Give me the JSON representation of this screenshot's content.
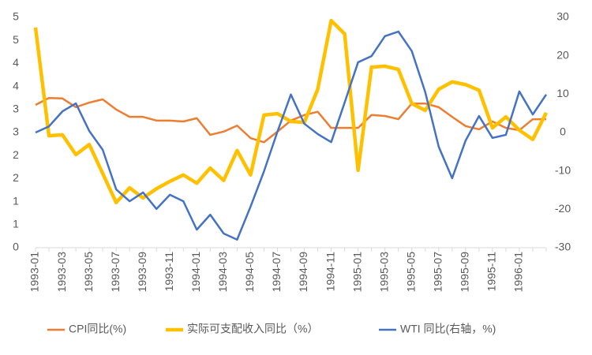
{
  "chart_data": {
    "type": "line",
    "categories": [
      "1993-01",
      null,
      "1993-03",
      null,
      "1993-05",
      null,
      "1993-07",
      null,
      "1993-09",
      null,
      "1993-11",
      null,
      "1994-01",
      null,
      "1994-03",
      null,
      "1994-05",
      null,
      "1994-07",
      null,
      "1994-09",
      null,
      "1994-11",
      null,
      "1995-01",
      null,
      "1995-03",
      null,
      "1995-05",
      null,
      "1995-07",
      null,
      "1995-09",
      null,
      "1995-11",
      null,
      "1996-01",
      null,
      null
    ],
    "series": [
      {
        "name": "CPI同比(%)",
        "color": "#ED7D31",
        "width": 2.5,
        "values": [
          3.1,
          3.25,
          3.24,
          3.05,
          3.15,
          3.22,
          3.0,
          2.84,
          2.84,
          2.76,
          2.76,
          2.74,
          2.81,
          2.45,
          2.52,
          2.65,
          2.38,
          2.29,
          2.52,
          2.76,
          2.88,
          2.95,
          2.6,
          2.6,
          2.6,
          2.88,
          2.86,
          2.79,
          3.13,
          3.13,
          3.05,
          2.84,
          2.64,
          2.57,
          2.74,
          2.6,
          2.55,
          2.79,
          2.79
        ]
      },
      {
        "name": "实际可支配收入同比（%）",
        "color": "#FFC000",
        "width": 4.5,
        "values": [
          4.78,
          2.43,
          2.45,
          2.02,
          2.24,
          1.61,
          0.98,
          1.3,
          1.08,
          1.28,
          1.44,
          1.58,
          1.4,
          1.73,
          1.46,
          2.11,
          1.58,
          2.88,
          2.91,
          2.74,
          2.72,
          3.44,
          4.93,
          4.64,
          1.68,
          3.92,
          3.94,
          3.87,
          3.13,
          2.98,
          3.44,
          3.6,
          3.54,
          3.42,
          2.6,
          2.84,
          2.55,
          2.35,
          2.93
        ]
      },
      {
        "name": "WTI 同比(右轴，%)",
        "color": "#4472C4",
        "width": 2.5,
        "axis": "y2",
        "values": [
          0,
          1.6,
          5.5,
          7.6,
          0.4,
          -4.5,
          -14.8,
          -17.9,
          -15.6,
          -19.9,
          -16.2,
          -17.9,
          -25.3,
          -21.4,
          -26.3,
          -27.9,
          -19.3,
          -10.1,
          0.2,
          9.9,
          2.3,
          -0.4,
          -2.5,
          7.8,
          18.3,
          19.9,
          25.1,
          26.3,
          21.2,
          10.5,
          -3.7,
          -11.9,
          -2.1,
          4.3,
          -1.4,
          -0.6,
          10.7,
          4.7,
          9.9
        ]
      }
    ],
    "ylim": [
      0,
      5
    ],
    "yticks": [
      0,
      {
        "value": 0.5,
        "label": "1"
      },
      1,
      {
        "value": 1.5,
        "label": "2"
      },
      2,
      {
        "value": 2.5,
        "label": "3"
      },
      3,
      {
        "value": 3.5,
        "label": "4"
      },
      4,
      {
        "value": 4.5,
        "label": "5"
      },
      5
    ],
    "y2lim": [
      -30,
      30
    ],
    "y2ticks": [
      -30,
      -20,
      -10,
      0,
      10,
      20,
      30
    ],
    "legend": "bottom"
  }
}
